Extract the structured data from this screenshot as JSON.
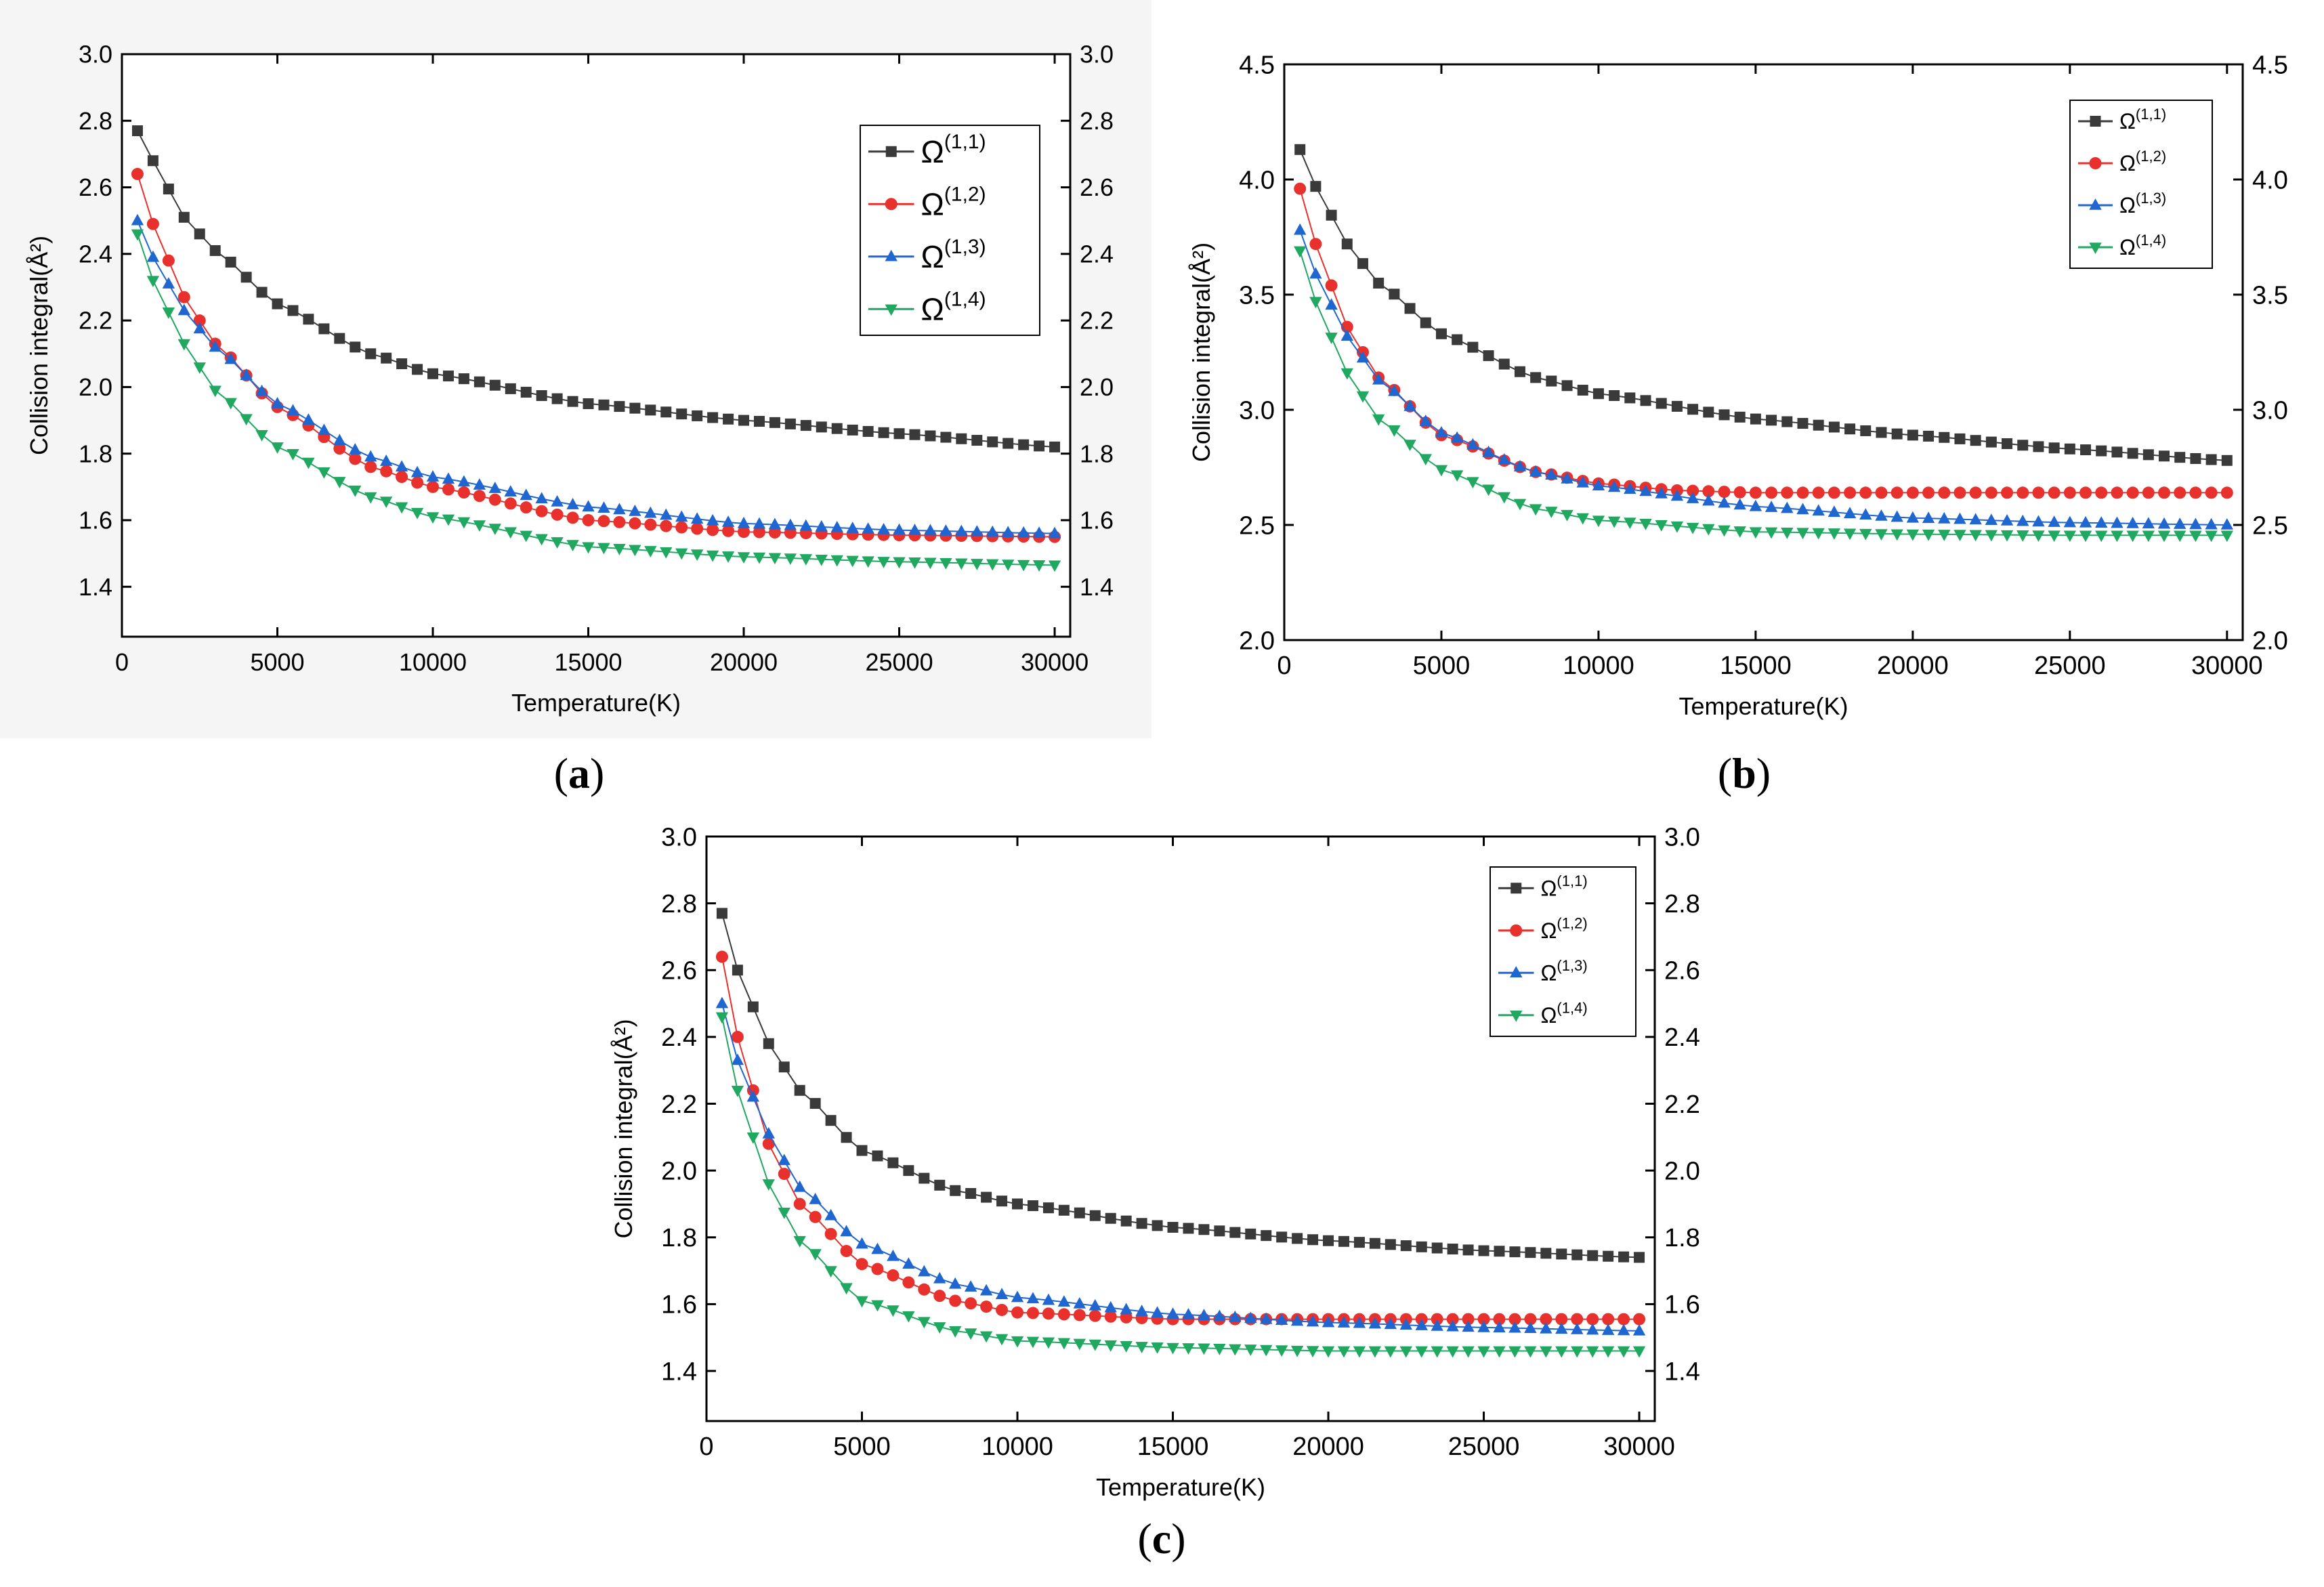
{
  "figure": {
    "panels": [
      {
        "id": "a",
        "caption_open": "(",
        "caption_label": "a",
        "caption_close": ")"
      },
      {
        "id": "b",
        "caption_open": "(",
        "caption_label": "b",
        "caption_close": ")"
      },
      {
        "id": "c",
        "caption_open": "(",
        "caption_label": "c",
        "caption_close": ")"
      }
    ]
  },
  "chart_data": [
    {
      "panel": "a",
      "type": "line",
      "xlabel": "Temperature(K)",
      "ylabel": "Collision integral(Å²)",
      "xlim": [
        0,
        30500
      ],
      "ylim": [
        1.25,
        3.0
      ],
      "xticks": [
        0,
        5000,
        10000,
        15000,
        20000,
        25000,
        30000
      ],
      "yticks": [
        1.4,
        1.6,
        1.8,
        2.0,
        2.2,
        2.4,
        2.6,
        2.8,
        3.0
      ],
      "ytick_labels": [
        "1.4",
        "1.6",
        "1.8",
        "2.0",
        "2.2",
        "2.4",
        "2.6",
        "2.8",
        "3.0"
      ],
      "right_axis_mirror": true,
      "legend_position": "top-right",
      "x_start": 500,
      "x_step": 500,
      "x_end": 30000,
      "series": [
        {
          "name": "Ω(1,1)",
          "symbol": "Ω",
          "superscript": "(1,1)",
          "color": "#3a3a3a",
          "marker": "square",
          "anchors": [
            [
              500,
              2.77
            ],
            [
              1000,
              2.68
            ],
            [
              2000,
              2.51
            ],
            [
              3000,
              2.41
            ],
            [
              5000,
              2.25
            ],
            [
              8000,
              2.1
            ],
            [
              10000,
              2.04
            ],
            [
              15000,
              1.95
            ],
            [
              20000,
              1.9
            ],
            [
              25000,
              1.86
            ],
            [
              30000,
              1.82
            ]
          ]
        },
        {
          "name": "Ω(1,2)",
          "symbol": "Ω",
          "superscript": "(1,2)",
          "color": "#e8302c",
          "marker": "circle",
          "anchors": [
            [
              500,
              2.64
            ],
            [
              1000,
              2.49
            ],
            [
              2000,
              2.27
            ],
            [
              3000,
              2.13
            ],
            [
              5000,
              1.94
            ],
            [
              8000,
              1.76
            ],
            [
              10000,
              1.7
            ],
            [
              15000,
              1.6
            ],
            [
              20000,
              1.565
            ],
            [
              25000,
              1.555
            ],
            [
              30000,
              1.55
            ]
          ]
        },
        {
          "name": "Ω(1,3)",
          "symbol": "Ω",
          "superscript": "(1,3)",
          "color": "#1f66d1",
          "marker": "triangle-up",
          "anchors": [
            [
              500,
              2.5
            ],
            [
              1000,
              2.39
            ],
            [
              2000,
              2.23
            ],
            [
              3000,
              2.12
            ],
            [
              5000,
              1.95
            ],
            [
              8000,
              1.79
            ],
            [
              10000,
              1.73
            ],
            [
              15000,
              1.64
            ],
            [
              20000,
              1.59
            ],
            [
              25000,
              1.57
            ],
            [
              30000,
              1.56
            ]
          ]
        },
        {
          "name": "Ω(1,4)",
          "symbol": "Ω",
          "superscript": "(1,4)",
          "color": "#20a860",
          "marker": "triangle-down",
          "anchors": [
            [
              500,
              2.46
            ],
            [
              1000,
              2.32
            ],
            [
              2000,
              2.13
            ],
            [
              3000,
              1.99
            ],
            [
              5000,
              1.82
            ],
            [
              8000,
              1.67
            ],
            [
              10000,
              1.61
            ],
            [
              15000,
              1.52
            ],
            [
              20000,
              1.49
            ],
            [
              25000,
              1.475
            ],
            [
              30000,
              1.465
            ]
          ]
        }
      ]
    },
    {
      "panel": "b",
      "type": "line",
      "xlabel": "Temperature(K)",
      "ylabel": "Collision integral(Å²)",
      "xlim": [
        0,
        30500
      ],
      "ylim": [
        2.0,
        4.5
      ],
      "xticks": [
        0,
        5000,
        10000,
        15000,
        20000,
        25000,
        30000
      ],
      "yticks": [
        2.0,
        2.5,
        3.0,
        3.5,
        4.0,
        4.5
      ],
      "ytick_labels": [
        "2.0",
        "2.5",
        "3.0",
        "3.5",
        "4.0",
        "4.5"
      ],
      "right_axis_mirror": true,
      "legend_position": "top-right",
      "x_start": 500,
      "x_step": 500,
      "x_end": 30000,
      "series": [
        {
          "name": "Ω(1,1)",
          "symbol": "Ω",
          "superscript": "(1,1)",
          "color": "#3a3a3a",
          "marker": "square",
          "anchors": [
            [
              500,
              4.13
            ],
            [
              1000,
              3.97
            ],
            [
              2000,
              3.72
            ],
            [
              3000,
              3.55
            ],
            [
              5000,
              3.33
            ],
            [
              8000,
              3.14
            ],
            [
              10000,
              3.07
            ],
            [
              15000,
              2.96
            ],
            [
              20000,
              2.89
            ],
            [
              25000,
              2.83
            ],
            [
              30000,
              2.78
            ]
          ]
        },
        {
          "name": "Ω(1,2)",
          "symbol": "Ω",
          "superscript": "(1,2)",
          "color": "#e8302c",
          "marker": "circle",
          "anchors": [
            [
              500,
              3.96
            ],
            [
              1000,
              3.72
            ],
            [
              2000,
              3.36
            ],
            [
              3000,
              3.14
            ],
            [
              5000,
              2.89
            ],
            [
              8000,
              2.73
            ],
            [
              10000,
              2.68
            ],
            [
              12500,
              2.65
            ],
            [
              15000,
              2.64
            ],
            [
              20000,
              2.64
            ],
            [
              30000,
              2.64
            ]
          ]
        },
        {
          "name": "Ω(1,3)",
          "symbol": "Ω",
          "superscript": "(1,3)",
          "color": "#1f66d1",
          "marker": "triangle-up",
          "anchors": [
            [
              500,
              3.78
            ],
            [
              1000,
              3.59
            ],
            [
              2000,
              3.32
            ],
            [
              3000,
              3.13
            ],
            [
              5000,
              2.9
            ],
            [
              8000,
              2.73
            ],
            [
              10000,
              2.67
            ],
            [
              15000,
              2.58
            ],
            [
              20000,
              2.53
            ],
            [
              25000,
              2.51
            ],
            [
              30000,
              2.5
            ]
          ]
        },
        {
          "name": "Ω(1,4)",
          "symbol": "Ω",
          "superscript": "(1,4)",
          "color": "#20a860",
          "marker": "triangle-down",
          "anchors": [
            [
              500,
              3.69
            ],
            [
              1000,
              3.47
            ],
            [
              2000,
              3.16
            ],
            [
              3000,
              2.96
            ],
            [
              5000,
              2.74
            ],
            [
              8000,
              2.57
            ],
            [
              10000,
              2.52
            ],
            [
              15000,
              2.47
            ],
            [
              20000,
              2.46
            ],
            [
              25000,
              2.455
            ],
            [
              30000,
              2.455
            ]
          ]
        }
      ]
    },
    {
      "panel": "c",
      "type": "line",
      "xlabel": "Temperature(K)",
      "ylabel": "Collision integral(Å²)",
      "xlim": [
        0,
        30500
      ],
      "ylim": [
        1.25,
        3.0
      ],
      "xticks": [
        0,
        5000,
        10000,
        15000,
        20000,
        25000,
        30000
      ],
      "yticks": [
        1.4,
        1.6,
        1.8,
        2.0,
        2.2,
        2.4,
        2.6,
        2.8,
        3.0
      ],
      "ytick_labels": [
        "1.4",
        "1.6",
        "1.8",
        "2.0",
        "2.2",
        "2.4",
        "2.6",
        "2.8",
        "3.0"
      ],
      "right_axis_mirror": true,
      "legend_position": "top-right",
      "x_start": 500,
      "x_step": 500,
      "x_end": 30000,
      "series": [
        {
          "name": "Ω(1,1)",
          "symbol": "Ω",
          "superscript": "(1,1)",
          "color": "#3a3a3a",
          "marker": "square",
          "anchors": [
            [
              500,
              2.77
            ],
            [
              1000,
              2.6
            ],
            [
              2000,
              2.38
            ],
            [
              3000,
              2.24
            ],
            [
              5000,
              2.06
            ],
            [
              8000,
              1.94
            ],
            [
              10000,
              1.9
            ],
            [
              15000,
              1.83
            ],
            [
              20000,
              1.79
            ],
            [
              25000,
              1.76
            ],
            [
              30000,
              1.74
            ]
          ]
        },
        {
          "name": "Ω(1,2)",
          "symbol": "Ω",
          "superscript": "(1,2)",
          "color": "#e8302c",
          "marker": "circle",
          "anchors": [
            [
              500,
              2.64
            ],
            [
              1000,
              2.4
            ],
            [
              2000,
              2.08
            ],
            [
              3000,
              1.9
            ],
            [
              5000,
              1.72
            ],
            [
              8000,
              1.61
            ],
            [
              10000,
              1.575
            ],
            [
              15000,
              1.555
            ],
            [
              20000,
              1.555
            ],
            [
              25000,
              1.555
            ],
            [
              30000,
              1.555
            ]
          ]
        },
        {
          "name": "Ω(1,3)",
          "symbol": "Ω",
          "superscript": "(1,3)",
          "color": "#1f66d1",
          "marker": "triangle-up",
          "anchors": [
            [
              500,
              2.5
            ],
            [
              1000,
              2.33
            ],
            [
              2000,
              2.11
            ],
            [
              3000,
              1.95
            ],
            [
              5000,
              1.78
            ],
            [
              8000,
              1.66
            ],
            [
              10000,
              1.62
            ],
            [
              15000,
              1.57
            ],
            [
              20000,
              1.545
            ],
            [
              25000,
              1.53
            ],
            [
              30000,
              1.52
            ]
          ]
        },
        {
          "name": "Ω(1,4)",
          "symbol": "Ω",
          "superscript": "(1,4)",
          "color": "#20a860",
          "marker": "triangle-down",
          "anchors": [
            [
              500,
              2.46
            ],
            [
              1000,
              2.24
            ],
            [
              2000,
              1.96
            ],
            [
              3000,
              1.79
            ],
            [
              5000,
              1.61
            ],
            [
              8000,
              1.52
            ],
            [
              10000,
              1.49
            ],
            [
              15000,
              1.47
            ],
            [
              20000,
              1.46
            ],
            [
              25000,
              1.46
            ],
            [
              30000,
              1.46
            ]
          ]
        }
      ]
    }
  ]
}
